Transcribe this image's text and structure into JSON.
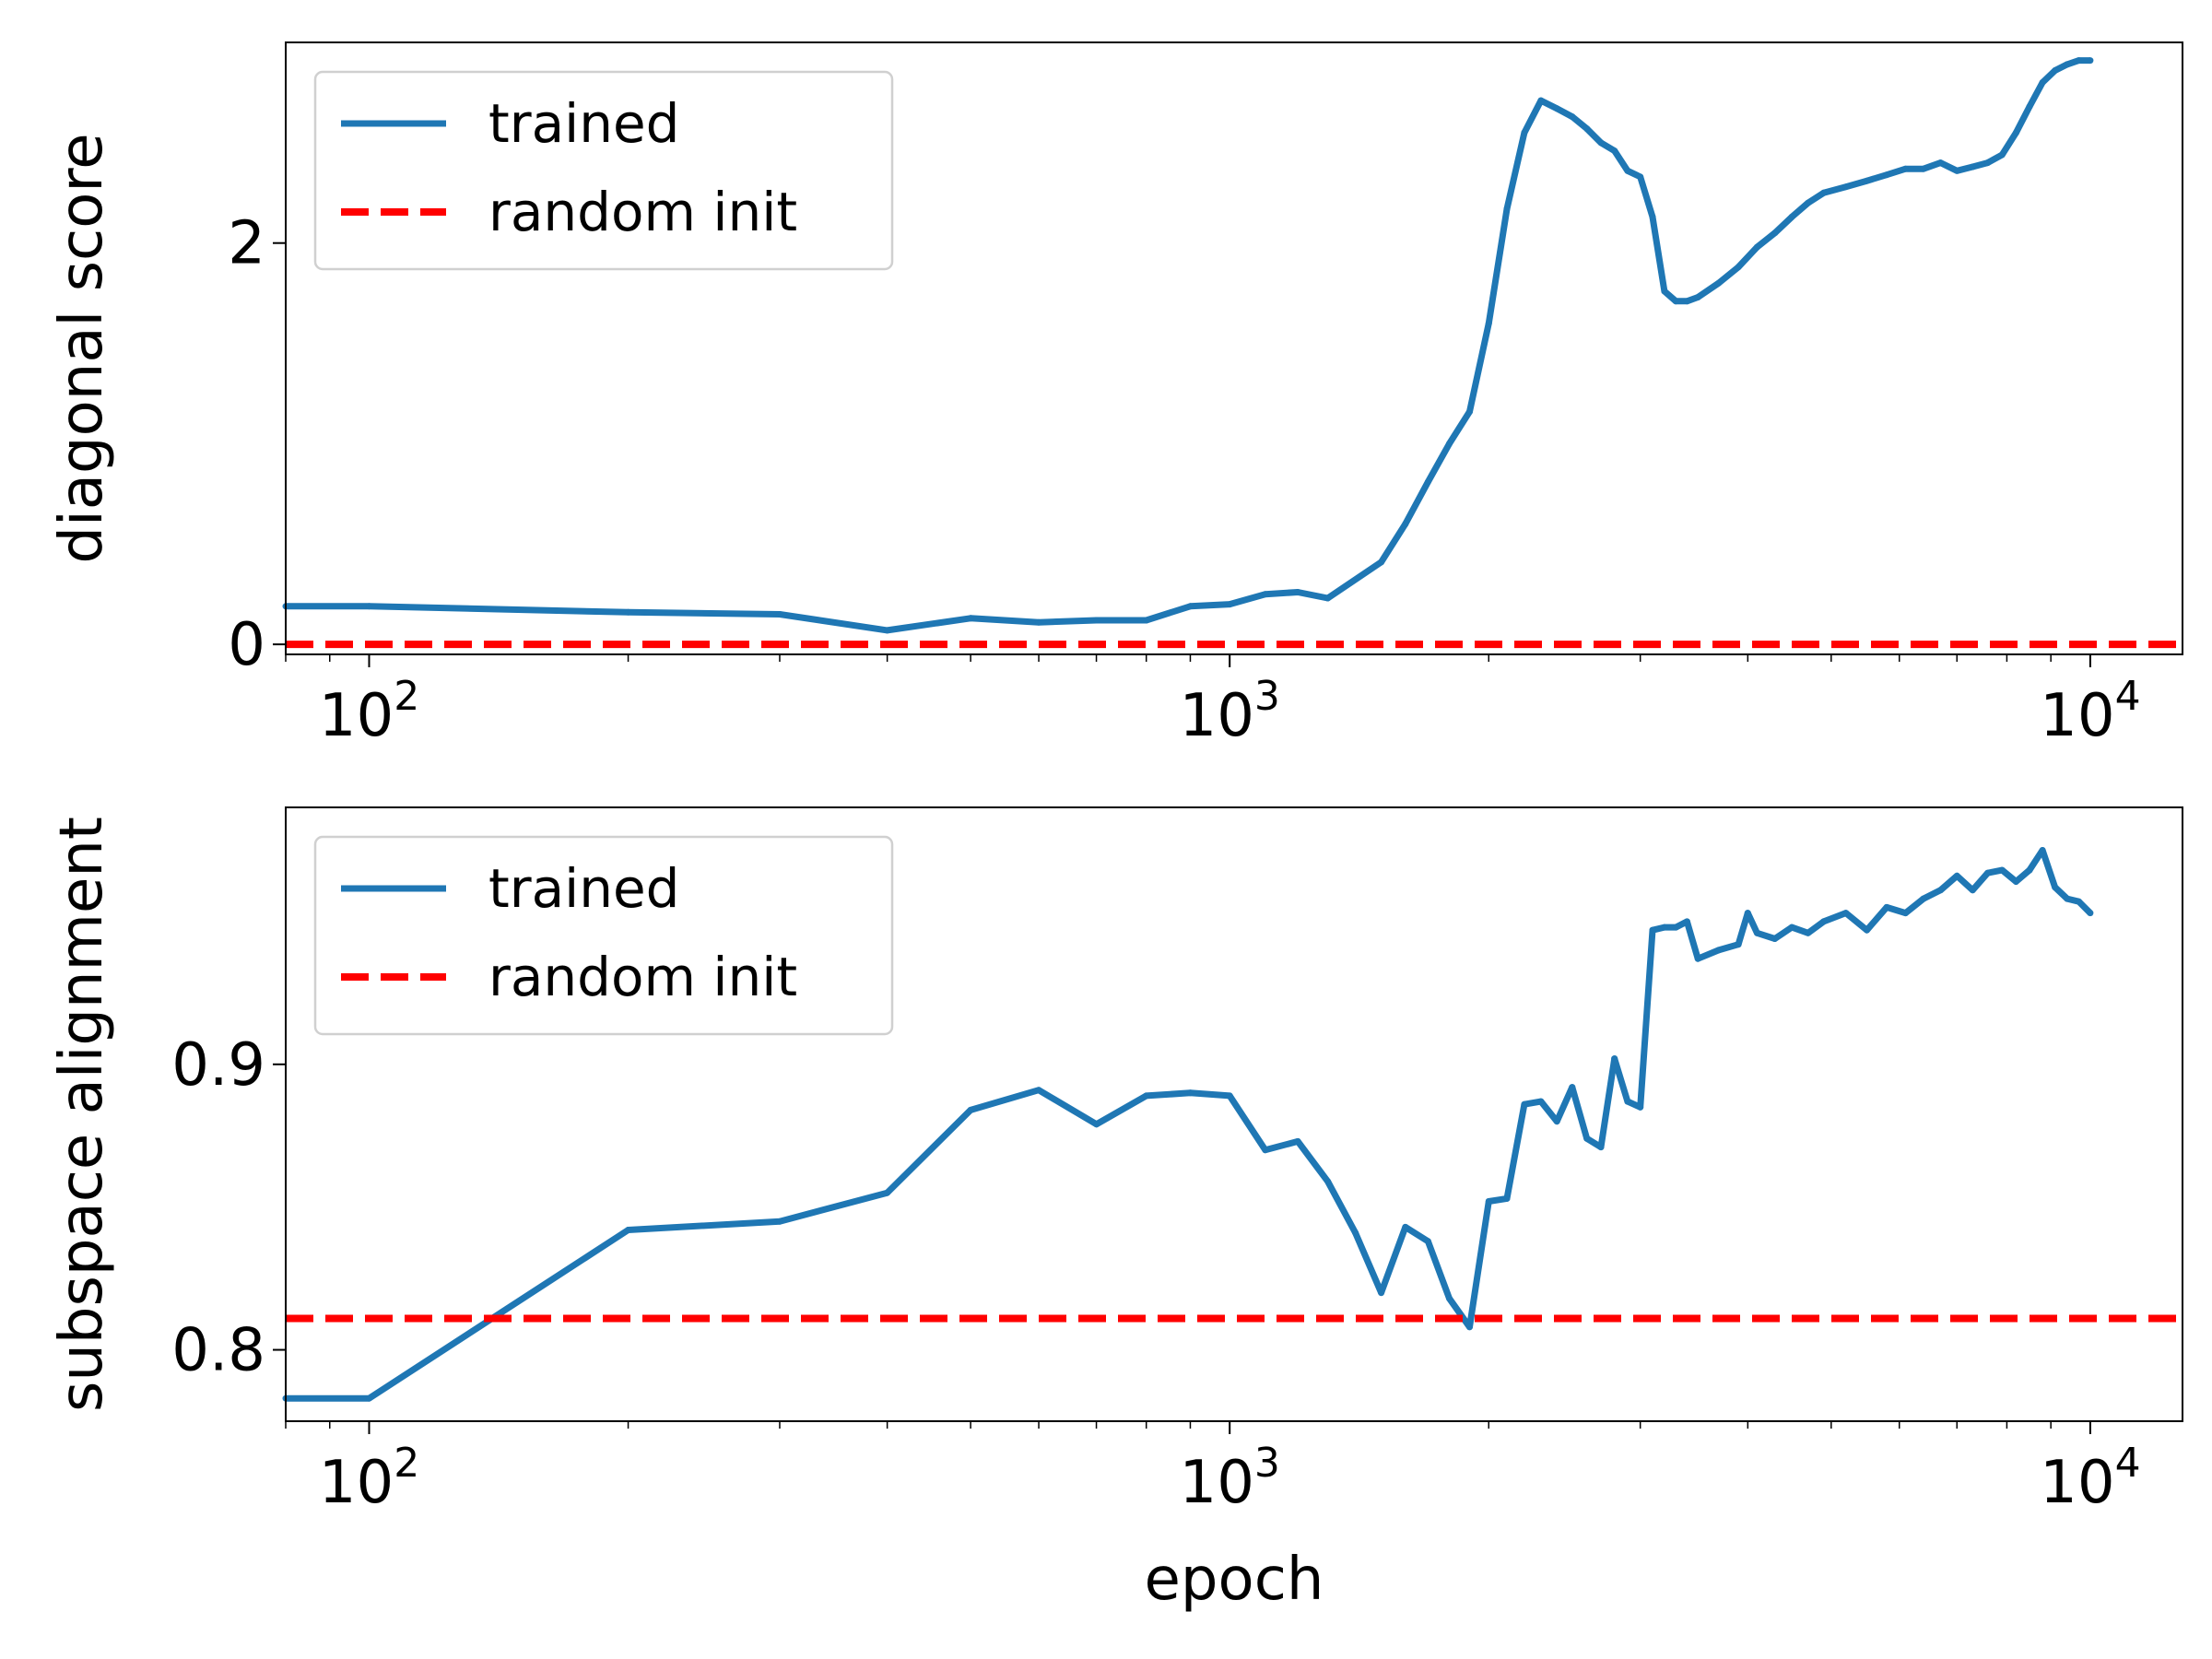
{
  "chart_data": [
    {
      "type": "line",
      "xscale": "log",
      "xlim": [
        80,
        12800
      ],
      "ylim": [
        -0.05,
        3.0
      ],
      "ylabel": "diagonal score",
      "xlabel": "",
      "legend_position": "top-left",
      "x_ticks": [
        {
          "value": 100,
          "base": "10",
          "exp": "2"
        },
        {
          "value": 1000,
          "base": "10",
          "exp": "3"
        },
        {
          "value": 10000,
          "base": "10",
          "exp": "4"
        }
      ],
      "y_ticks": [
        {
          "value": 0,
          "label": "0"
        },
        {
          "value": 2,
          "label": "2"
        }
      ],
      "series": [
        {
          "name": "trained",
          "color": "#1f77b4",
          "style": "solid",
          "x": [
            80,
            100,
            200,
            300,
            400,
            500,
            600,
            700,
            800,
            900,
            1000,
            1100,
            1200,
            1300,
            1500,
            1600,
            1700,
            1800,
            1900,
            2000,
            2100,
            2200,
            2300,
            2400,
            2500,
            2600,
            2700,
            2800,
            2900,
            3000,
            3100,
            3200,
            3300,
            3400,
            3500,
            3700,
            3900,
            4100,
            4300,
            4500,
            4700,
            4900,
            5200,
            5500,
            5800,
            6100,
            6400,
            6700,
            7000,
            7300,
            7600,
            7900,
            8200,
            8500,
            8800,
            9100,
            9400,
            9700,
            10000
          ],
          "y": [
            0.19,
            0.19,
            0.16,
            0.15,
            0.07,
            0.13,
            0.11,
            0.12,
            0.12,
            0.19,
            0.2,
            0.25,
            0.26,
            0.23,
            0.41,
            0.6,
            0.81,
            1.0,
            1.16,
            1.6,
            2.17,
            2.55,
            2.71,
            2.67,
            2.63,
            2.57,
            2.5,
            2.46,
            2.36,
            2.33,
            2.13,
            1.76,
            1.71,
            1.71,
            1.73,
            1.8,
            1.88,
            1.98,
            2.05,
            2.13,
            2.2,
            2.25,
            2.28,
            2.31,
            2.34,
            2.37,
            2.37,
            2.4,
            2.36,
            2.38,
            2.4,
            2.44,
            2.55,
            2.68,
            2.8,
            2.86,
            2.89,
            2.91,
            2.91
          ]
        },
        {
          "name": "random init",
          "color": "#ff0000",
          "style": "dashed",
          "value": 0.0
        }
      ]
    },
    {
      "type": "line",
      "xscale": "log",
      "xlim": [
        80,
        12800
      ],
      "ylim": [
        0.775,
        0.99
      ],
      "ylabel": "subspace alignment",
      "xlabel": "epoch",
      "legend_position": "top-left",
      "x_ticks": [
        {
          "value": 100,
          "base": "10",
          "exp": "2"
        },
        {
          "value": 1000,
          "base": "10",
          "exp": "3"
        },
        {
          "value": 10000,
          "base": "10",
          "exp": "4"
        }
      ],
      "y_ticks": [
        {
          "value": 0.8,
          "label": "0.8"
        },
        {
          "value": 0.9,
          "label": "0.9"
        }
      ],
      "series": [
        {
          "name": "trained",
          "color": "#1f77b4",
          "style": "solid",
          "x": [
            80,
            100,
            200,
            300,
            400,
            500,
            600,
            700,
            800,
            900,
            1000,
            1100,
            1200,
            1300,
            1400,
            1500,
            1600,
            1700,
            1800,
            1900,
            2000,
            2100,
            2200,
            2300,
            2400,
            2500,
            2600,
            2700,
            2800,
            2900,
            3000,
            3100,
            3200,
            3300,
            3400,
            3500,
            3700,
            3900,
            4000,
            4100,
            4300,
            4500,
            4700,
            4900,
            5200,
            5500,
            5800,
            6100,
            6400,
            6700,
            7000,
            7300,
            7600,
            7900,
            8200,
            8500,
            8800,
            9100,
            9400,
            9700,
            10000
          ],
          "y": [
            0.783,
            0.783,
            0.842,
            0.845,
            0.855,
            0.884,
            0.891,
            0.879,
            0.889,
            0.89,
            0.889,
            0.87,
            0.873,
            0.859,
            0.841,
            0.82,
            0.843,
            0.838,
            0.818,
            0.808,
            0.852,
            0.853,
            0.886,
            0.887,
            0.88,
            0.892,
            0.874,
            0.871,
            0.902,
            0.887,
            0.885,
            0.947,
            0.948,
            0.948,
            0.95,
            0.937,
            0.94,
            0.942,
            0.953,
            0.946,
            0.944,
            0.948,
            0.946,
            0.95,
            0.953,
            0.947,
            0.955,
            0.953,
            0.958,
            0.961,
            0.966,
            0.961,
            0.967,
            0.968,
            0.964,
            0.968,
            0.975,
            0.962,
            0.958,
            0.957,
            0.953
          ]
        },
        {
          "name": "random init",
          "color": "#ff0000",
          "style": "dashed",
          "value": 0.811
        }
      ]
    }
  ]
}
